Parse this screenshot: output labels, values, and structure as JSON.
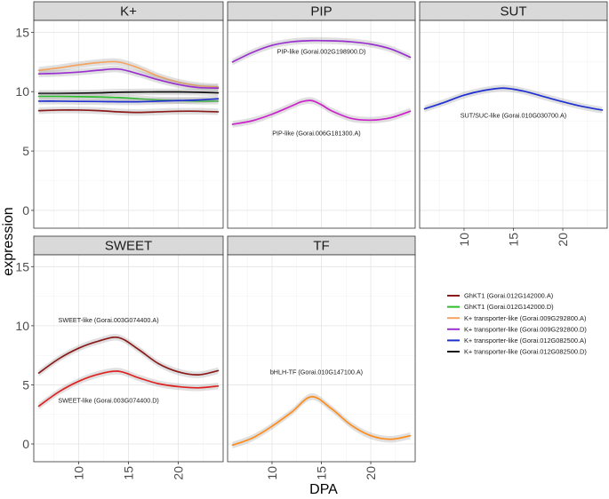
{
  "chart_data": {
    "type": "line",
    "x_label": "DPA",
    "y_label": "expression",
    "x_ticks": [
      10,
      15,
      20
    ],
    "y_ticks": [
      0,
      5,
      10,
      15
    ],
    "x_range": [
      5.5,
      24.5
    ],
    "y_range": [
      -1.5,
      16
    ],
    "legend": [
      {
        "label": "GhKT1 (Gorai.012G142000.A)",
        "color": "#8b1a1a"
      },
      {
        "label": "GhKT1 (Gorai.012G142000.D)",
        "color": "#2ebd2e"
      },
      {
        "label": "K+ transporter-like (Gorai.009G292800.A)",
        "color": "#f4a460"
      },
      {
        "label": "K+ transporter-like (Gorai.009G292800.D)",
        "color": "#9b30d0"
      },
      {
        "label": "K+ transporter-like (Gorai.012G082500.A)",
        "color": "#1f2fd0"
      },
      {
        "label": "K+ transporter-like (Gorai.012G082500.D)",
        "color": "#111111"
      }
    ],
    "panels": [
      {
        "title": "K+",
        "series": [
          {
            "name": "K+ transporter-like (Gorai.009G292800.A)",
            "color": "#f4a460",
            "x": [
              6,
              8,
              10,
              12,
              14,
              16,
              18,
              20,
              22,
              24
            ],
            "y": [
              11.8,
              12.0,
              12.25,
              12.45,
              12.5,
              12.0,
              11.3,
              10.8,
              10.5,
              10.4
            ]
          },
          {
            "name": "K+ transporter-like (Gorai.009G292800.D)",
            "color": "#9b30d0",
            "x": [
              6,
              8,
              10,
              12,
              14,
              16,
              18,
              20,
              22,
              24
            ],
            "y": [
              11.5,
              11.55,
              11.65,
              11.8,
              11.9,
              11.5,
              11.0,
              10.6,
              10.35,
              10.3
            ]
          },
          {
            "name": "K+ transporter-like (Gorai.012G082500.D)",
            "color": "#111111",
            "x": [
              6,
              8,
              10,
              12,
              14,
              16,
              18,
              20,
              22,
              24
            ],
            "y": [
              9.85,
              9.85,
              9.87,
              9.9,
              9.95,
              9.97,
              9.98,
              9.98,
              9.95,
              9.9
            ]
          },
          {
            "name": "GhKT1 (Gorai.012G142000.D)",
            "color": "#2ebd2e",
            "x": [
              6,
              8,
              10,
              12,
              14,
              16,
              18,
              20,
              22,
              24
            ],
            "y": [
              9.6,
              9.6,
              9.58,
              9.55,
              9.5,
              9.4,
              9.3,
              9.25,
              9.2,
              9.2
            ]
          },
          {
            "name": "K+ transporter-like (Gorai.012G082500.A)",
            "color": "#1f2fd0",
            "x": [
              6,
              8,
              10,
              12,
              14,
              16,
              18,
              20,
              22,
              24
            ],
            "y": [
              9.2,
              9.2,
              9.18,
              9.17,
              9.15,
              9.15,
              9.2,
              9.25,
              9.3,
              9.4
            ]
          },
          {
            "name": "GhKT1 (Gorai.012G142000.A)",
            "color": "#8b1a1a",
            "x": [
              6,
              8,
              10,
              12,
              14,
              16,
              18,
              20,
              22,
              24
            ],
            "y": [
              8.4,
              8.45,
              8.45,
              8.4,
              8.3,
              8.25,
              8.3,
              8.35,
              8.35,
              8.3
            ]
          }
        ],
        "annotations": []
      },
      {
        "title": "PIP",
        "series": [
          {
            "name": "PIP-like (Gorai.002G198900.D)",
            "color": "#9b30d0",
            "x": [
              6,
              8,
              10,
              12,
              14,
              16,
              18,
              20,
              22,
              24
            ],
            "y": [
              12.5,
              13.3,
              13.9,
              14.2,
              14.3,
              14.28,
              14.2,
              14.0,
              13.6,
              12.9
            ]
          },
          {
            "name": "PIP-like (Gorai.006G181300.A)",
            "color": "#cc22cc",
            "x": [
              6,
              8,
              10,
              12,
              13,
              14,
              15,
              16,
              18,
              20,
              22,
              24
            ],
            "y": [
              7.25,
              7.55,
              8.1,
              8.8,
              9.15,
              9.25,
              8.9,
              8.4,
              7.75,
              7.6,
              7.8,
              8.35
            ]
          }
        ],
        "annotations": [
          {
            "text": "PIP-like (Gorai.002G198900.D)",
            "x": 15,
            "y": 13.2
          },
          {
            "text": "PIP-like (Gorai.006G181300.A)",
            "x": 14.5,
            "y": 6.3
          }
        ]
      },
      {
        "title": "SUT",
        "series": [
          {
            "name": "SUT/SUC-like (Gorai.010G030700.A)",
            "color": "#1f2fd0",
            "x": [
              6,
              8,
              10,
              12,
              14,
              16,
              18,
              20,
              22,
              24
            ],
            "y": [
              8.55,
              9.1,
              9.7,
              10.1,
              10.3,
              10.05,
              9.6,
              9.15,
              8.75,
              8.45
            ]
          }
        ],
        "annotations": [
          {
            "text": "SUT/SUC-like (Gorai.010G030700.A)",
            "x": 15,
            "y": 7.8
          }
        ]
      },
      {
        "title": "SWEET",
        "series": [
          {
            "name": "SWEET-like (Gorai.003G074400.A)",
            "color": "#8b1a1a",
            "x": [
              6,
              8,
              10,
              12,
              14,
              16,
              18,
              20,
              22,
              24
            ],
            "y": [
              6.0,
              7.2,
              8.1,
              8.7,
              9.0,
              8.0,
              6.8,
              6.1,
              5.85,
              6.2
            ]
          },
          {
            "name": "SWEET-like (Gorai.003G074400.D)",
            "color": "#dd2222",
            "x": [
              6,
              8,
              10,
              12,
              14,
              16,
              18,
              20,
              22,
              24
            ],
            "y": [
              3.2,
              4.4,
              5.3,
              5.9,
              6.15,
              5.6,
              5.1,
              4.85,
              4.75,
              4.9
            ]
          }
        ],
        "annotations": [
          {
            "text": "SWEET-like (Gorai.003G074400.A)",
            "x": 13,
            "y": 10.3
          },
          {
            "text": "SWEET-like (Gorai.003G074400.D)",
            "x": 13,
            "y": 3.5
          }
        ]
      },
      {
        "title": "TF",
        "series": [
          {
            "name": "bHLH-TF (Gorai.010G147100.A)",
            "color": "#ff8c1a",
            "x": [
              6,
              8,
              10,
              12,
              14,
              16,
              18,
              20,
              22,
              24
            ],
            "y": [
              -0.1,
              0.5,
              1.5,
              2.7,
              4.0,
              3.0,
              1.6,
              0.7,
              0.4,
              0.7
            ]
          }
        ],
        "annotations": [
          {
            "text": "bHLH-TF (Gorai.010G147100.A)",
            "x": 14.5,
            "y": 5.9
          }
        ]
      }
    ]
  }
}
